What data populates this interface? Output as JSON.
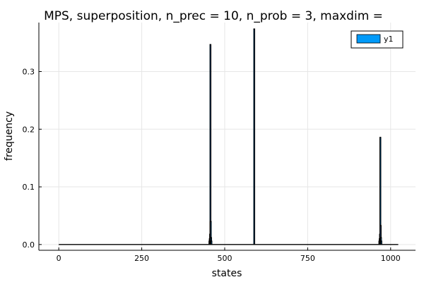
{
  "chart_data": {
    "type": "bar",
    "title": "MPS, superposition, n_prec = 10, n_prob = 3, maxdim =",
    "xlabel": "states",
    "ylabel": "frequency",
    "xlim": [
      -60,
      1075
    ],
    "ylim": [
      -0.01,
      0.385
    ],
    "x_ticks": [
      0,
      250,
      500,
      750,
      1000
    ],
    "y_ticks": [
      0.0,
      0.1,
      0.2,
      0.3
    ],
    "x_tick_labels": [
      "0",
      "250",
      "500",
      "750",
      "1000"
    ],
    "y_tick_labels": [
      "0.0",
      "0.1",
      "0.2",
      "0.3"
    ],
    "baseline_range": [
      0,
      1023
    ],
    "grid": true,
    "legend_position": "top-right",
    "series": [
      {
        "name": "y1",
        "color": "#009af9",
        "points": [
          {
            "x": 454,
            "y": 0.006
          },
          {
            "x": 455,
            "y": 0.01
          },
          {
            "x": 456,
            "y": 0.018
          },
          {
            "x": 457,
            "y": 0.347
          },
          {
            "x": 458,
            "y": 0.04
          },
          {
            "x": 459,
            "y": 0.012
          },
          {
            "x": 460,
            "y": 0.006
          },
          {
            "x": 589,
            "y": 0.374
          },
          {
            "x": 966,
            "y": 0.006
          },
          {
            "x": 967,
            "y": 0.01
          },
          {
            "x": 968,
            "y": 0.018
          },
          {
            "x": 969,
            "y": 0.186
          },
          {
            "x": 970,
            "y": 0.033
          },
          {
            "x": 971,
            "y": 0.012
          },
          {
            "x": 972,
            "y": 0.006
          }
        ]
      }
    ]
  }
}
